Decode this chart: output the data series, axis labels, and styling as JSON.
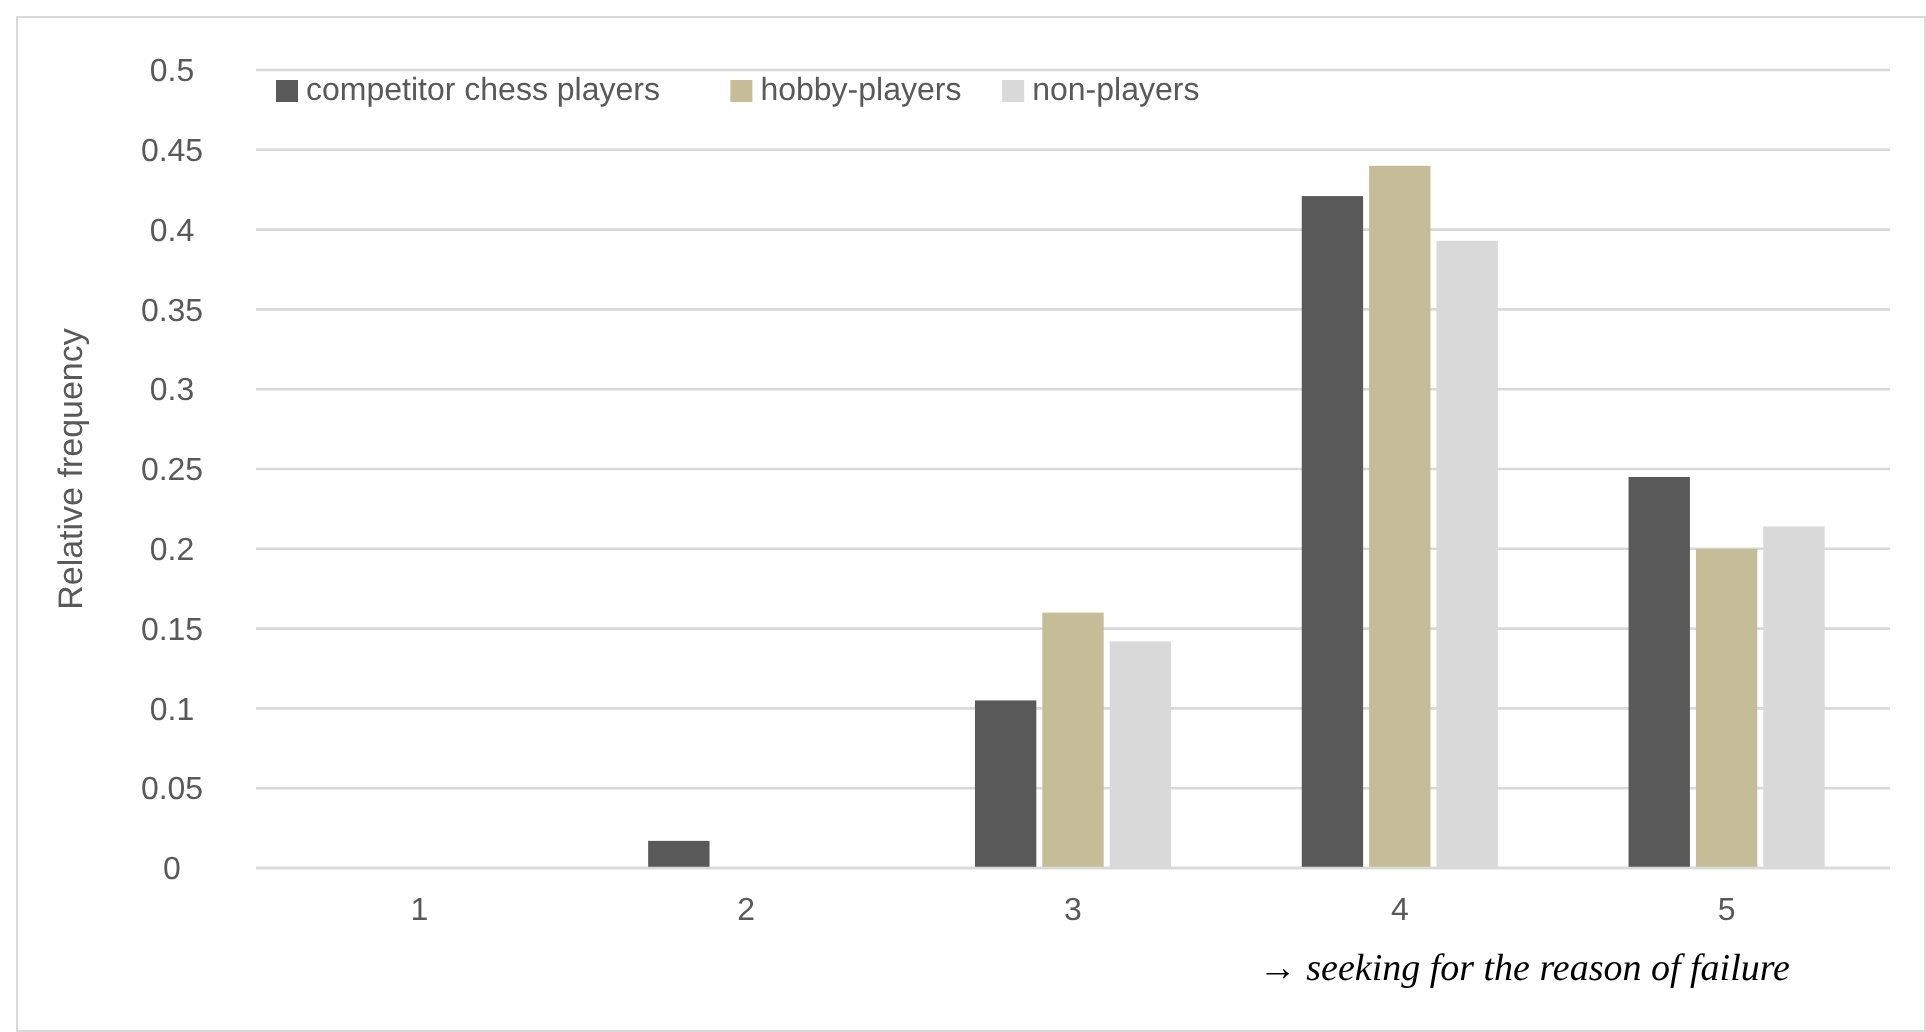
{
  "chart_data": {
    "type": "bar",
    "ylabel": "Relative frequency",
    "categories": [
      "1",
      "2",
      "3",
      "4",
      "5"
    ],
    "series": [
      {
        "name": "competitor chess players",
        "color": "#595959",
        "values": [
          0,
          0.017,
          0.105,
          0.421,
          0.245
        ]
      },
      {
        "name": "hobby-players",
        "color": "#c4bd97",
        "values": [
          0,
          0,
          0.16,
          0.44,
          0.2
        ]
      },
      {
        "name": "non-players",
        "color": "#d9d9d9",
        "values": [
          0,
          0,
          0.142,
          0.393,
          0.214
        ]
      }
    ],
    "ylim": [
      0,
      0.5
    ],
    "yticks": [
      0,
      0.05,
      0.1,
      0.15,
      0.2,
      0.25,
      0.3,
      0.35,
      0.4,
      0.45,
      0.5
    ],
    "grid": "y",
    "legend": "top left",
    "annotations": [
      "→ seeking for the reason of failure"
    ]
  }
}
